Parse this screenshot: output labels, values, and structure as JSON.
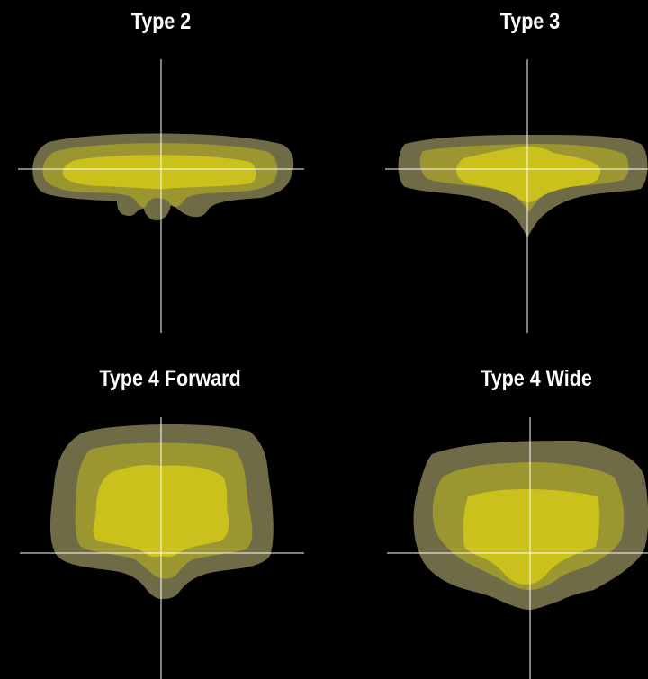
{
  "colors": {
    "background": "#000000",
    "outer_zone": "#706b47",
    "middle_zone": "#9c9630",
    "inner_zone": "#cbc11c",
    "axis_line": "#ffffff",
    "title_text": "#ffffff"
  },
  "panels": [
    {
      "id": "type-2",
      "title": "Type 2"
    },
    {
      "id": "type-3",
      "title": "Type 3"
    },
    {
      "id": "type-4-forward",
      "title": "Type 4 Forward"
    },
    {
      "id": "type-4-wide",
      "title": "Type 4 Wide"
    }
  ]
}
